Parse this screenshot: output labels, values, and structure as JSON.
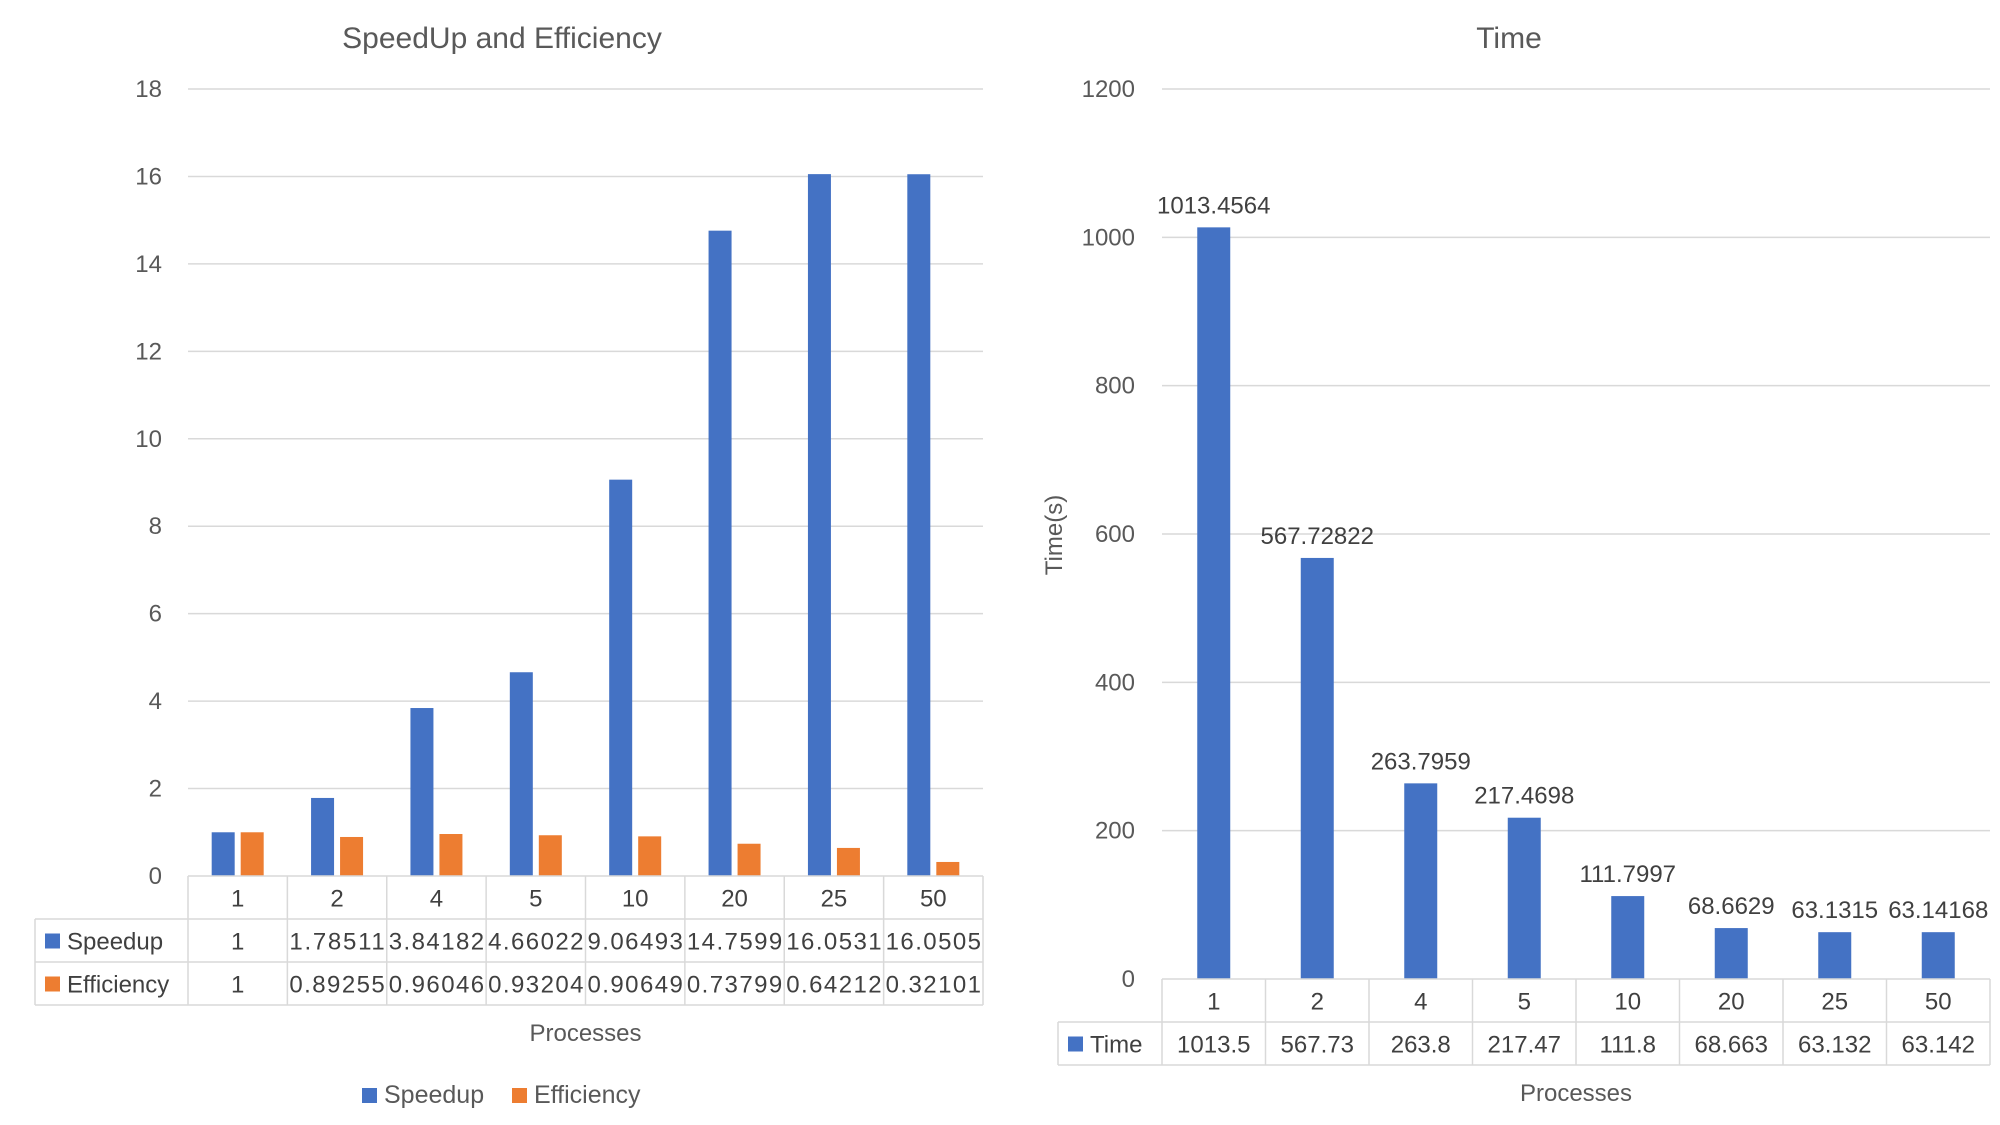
{
  "chart_data": [
    {
      "type": "bar",
      "title": "SpeedUp and Efficiency",
      "xlabel": "Processes",
      "ylabel": "",
      "ylim": [
        0,
        18
      ],
      "ytick_step": 2,
      "categories": [
        "1",
        "2",
        "4",
        "5",
        "10",
        "20",
        "25",
        "50"
      ],
      "series": [
        {
          "name": "Speedup",
          "color": "#4472C4",
          "values": [
            1,
            1.78511,
            3.84182,
            4.66022,
            9.06493,
            14.7599,
            16.0531,
            16.0505
          ],
          "table_values": [
            "1",
            "1.78511",
            "3.84182",
            "4.66022",
            "9.06493",
            "14.7599",
            "16.0531",
            "16.0505"
          ]
        },
        {
          "name": "Efficiency",
          "color": "#ED7D31",
          "values": [
            1,
            0.89255,
            0.96046,
            0.93204,
            0.90649,
            0.73799,
            0.64212,
            0.32101
          ],
          "table_values": [
            "1",
            "0.89255",
            "0.96046",
            "0.93204",
            "0.90649",
            "0.73799",
            "0.64212",
            "0.32101"
          ]
        }
      ],
      "grid": true,
      "legend": "bottom",
      "data_table": true
    },
    {
      "type": "bar",
      "title": "Time",
      "xlabel": "Processes",
      "ylabel": "Time(s)",
      "ylim": [
        0,
        1200
      ],
      "ytick_step": 200,
      "categories": [
        "1",
        "2",
        "4",
        "5",
        "10",
        "20",
        "25",
        "50"
      ],
      "series": [
        {
          "name": "Time",
          "color": "#4472C4",
          "values": [
            1013.4564,
            567.72822,
            263.7959,
            217.4698,
            111.7997,
            68.6629,
            63.1315,
            63.14168
          ],
          "data_labels": [
            "1013.4564",
            "567.72822",
            "263.7959",
            "217.4698",
            "111.7997",
            "68.6629",
            "63.1315",
            "63.14168"
          ],
          "table_values": [
            "1013.5",
            "567.73",
            "263.8",
            "217.47",
            "111.8",
            "68.663",
            "63.132",
            "63.142"
          ]
        }
      ],
      "grid": true,
      "legend": "none",
      "data_table": true
    }
  ]
}
